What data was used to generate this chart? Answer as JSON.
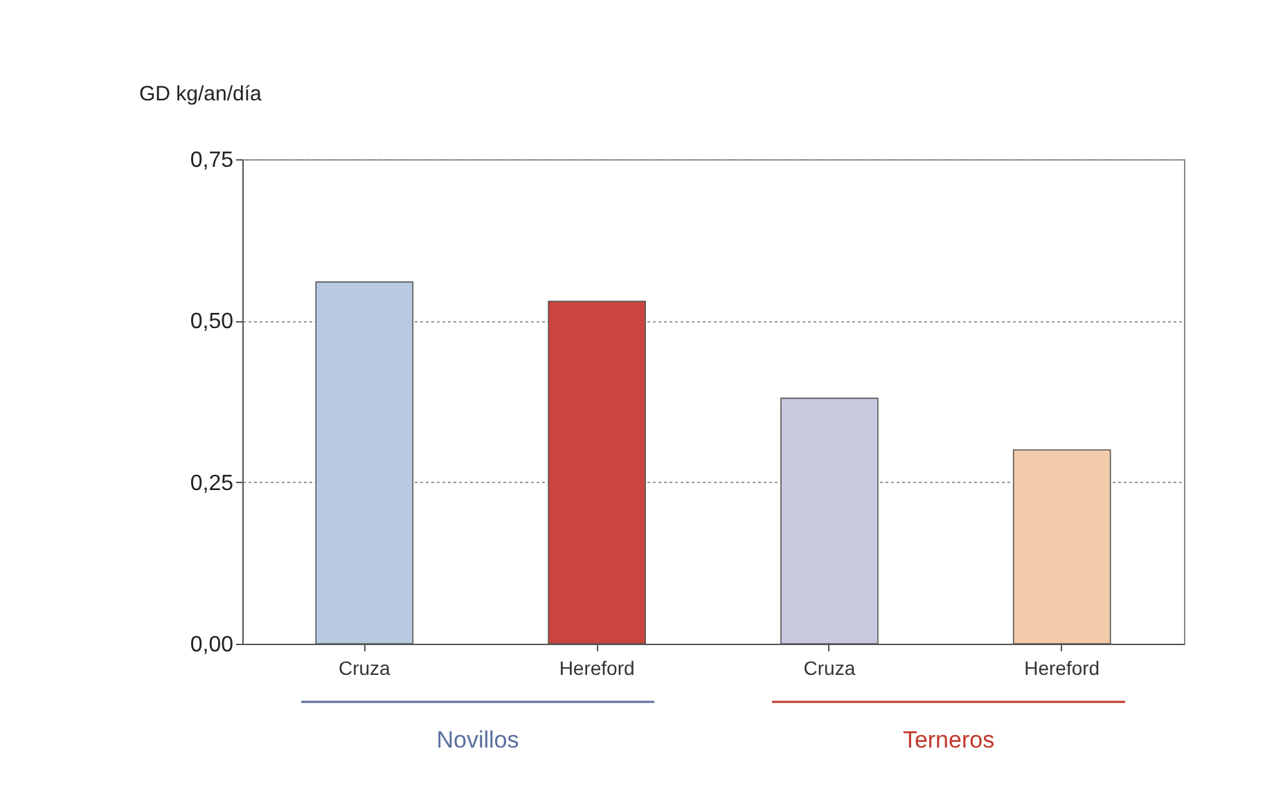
{
  "chart_data": {
    "type": "bar",
    "ylabel": "GD kg/an/día",
    "categories": [
      "Cruza",
      "Hereford",
      "Cruza",
      "Hereford"
    ],
    "values": [
      0.56,
      0.53,
      0.38,
      0.3
    ],
    "colors": [
      "#b9c9e2",
      "#c9453e",
      "#c9c9e0",
      "#f2cbab"
    ],
    "ylim": [
      0,
      0.75
    ],
    "yticks": [
      {
        "value": 0,
        "label": "0,00"
      },
      {
        "value": 0.25,
        "label": "0,25"
      },
      {
        "value": 0.5,
        "label": "0,50"
      },
      {
        "value": 0.75,
        "label": "0,75"
      }
    ],
    "grid": "y",
    "annotations": [
      "Novillos",
      "Terneros"
    ]
  }
}
